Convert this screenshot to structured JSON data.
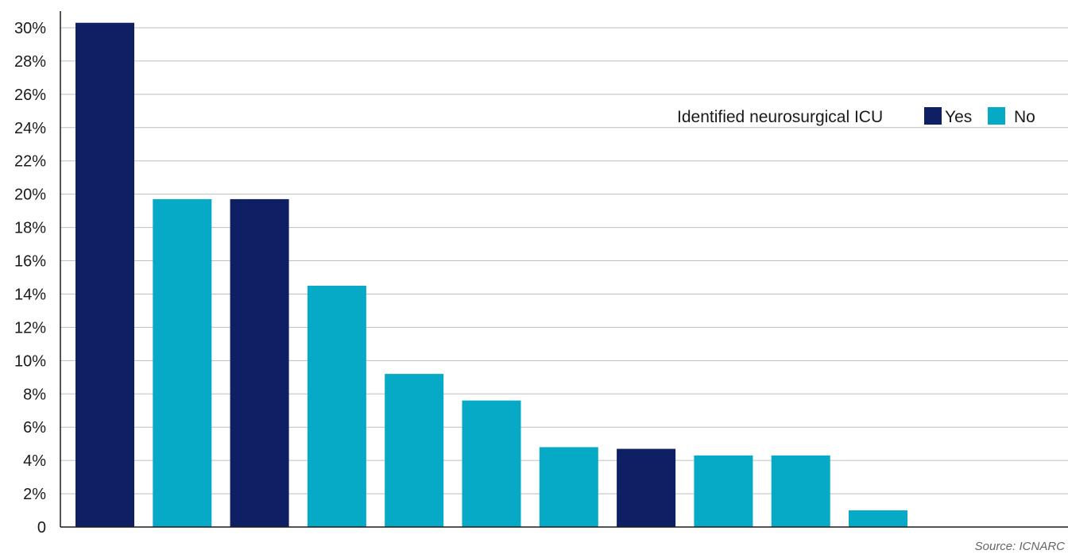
{
  "chart_data": {
    "type": "bar",
    "title": "",
    "xlabel": "",
    "ylabel": "",
    "ylim": [
      0,
      31
    ],
    "y_ticks": [
      {
        "value": 0,
        "label": "0"
      },
      {
        "value": 2,
        "label": "2%"
      },
      {
        "value": 4,
        "label": "4%"
      },
      {
        "value": 6,
        "label": "6%"
      },
      {
        "value": 8,
        "label": "8%"
      },
      {
        "value": 10,
        "label": "10%"
      },
      {
        "value": 12,
        "label": "12%"
      },
      {
        "value": 14,
        "label": "14%"
      },
      {
        "value": 16,
        "label": "16%"
      },
      {
        "value": 18,
        "label": "18%"
      },
      {
        "value": 20,
        "label": "20%"
      },
      {
        "value": 22,
        "label": "22%"
      },
      {
        "value": 24,
        "label": "24%"
      },
      {
        "value": 26,
        "label": "26%"
      },
      {
        "value": 28,
        "label": "28%"
      },
      {
        "value": 30,
        "label": "30%"
      }
    ],
    "grid": true,
    "values": [
      30.3,
      19.7,
      19.7,
      14.5,
      9.2,
      7.6,
      4.8,
      4.7,
      4.3,
      4.3,
      1.0
    ],
    "neurosurgical_icu": [
      "Yes",
      "No",
      "Yes",
      "No",
      "No",
      "No",
      "No",
      "Yes",
      "No",
      "No",
      "No"
    ],
    "legend": {
      "placement": "top-right",
      "title": "Identified neurosurgical ICU",
      "entries": [
        {
          "label": "Yes",
          "color": "#0f1f63"
        },
        {
          "label": "No",
          "color": "#07aac6"
        }
      ]
    },
    "source": "Source: ICNARC"
  }
}
